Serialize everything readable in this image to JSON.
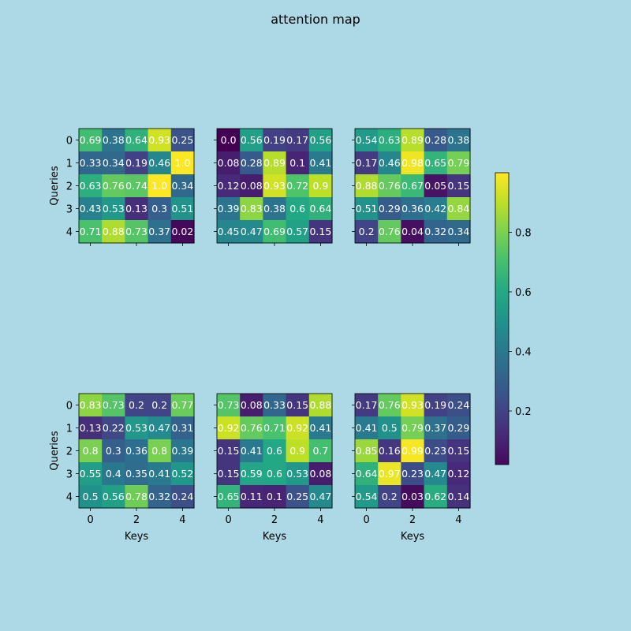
{
  "figure": {
    "background": "#add8e6",
    "title": "attention map"
  },
  "chart_data": {
    "type": "heatmap",
    "title": "attention map",
    "xlabel": "Keys",
    "ylabel": "Queries",
    "colormap": "viridis",
    "colorbar": {
      "range": [
        0.0,
        1.0
      ],
      "ticks": [
        "0.2",
        "0.4",
        "0.6",
        "0.8"
      ],
      "tick_values": [
        0.2,
        0.4,
        0.6,
        0.8
      ]
    },
    "x_ticks": [
      "0",
      "2",
      "4"
    ],
    "x_tick_values": [
      0,
      2,
      4
    ],
    "y_ticks": [
      "0",
      "1",
      "2",
      "3",
      "4"
    ],
    "layout": {
      "rows": 2,
      "cols": 3
    },
    "heads": [
      {
        "labels": [
          [
            "0.69",
            "0.38",
            "0.64",
            "0.93",
            "0.25"
          ],
          [
            "0.33",
            "0.34",
            "0.19",
            "0.46",
            "1.0"
          ],
          [
            "0.63",
            "0.76",
            "0.74",
            "1.0",
            "0.34"
          ],
          [
            "0.43",
            "0.53",
            "0.13",
            "0.3",
            "0.51"
          ],
          [
            "0.71",
            "0.88",
            "0.73",
            "0.37",
            "0.02"
          ]
        ]
      },
      {
        "labels": [
          [
            "0.0",
            "0.56",
            "0.19",
            "0.17",
            "0.56"
          ],
          [
            "0.08",
            "0.28",
            "0.89",
            "0.1",
            "0.41"
          ],
          [
            "0.12",
            "0.08",
            "0.93",
            "0.72",
            "0.9"
          ],
          [
            "0.39",
            "0.83",
            "0.38",
            "0.6",
            "0.64"
          ],
          [
            "0.45",
            "0.47",
            "0.69",
            "0.57",
            "0.15"
          ]
        ]
      },
      {
        "labels": [
          [
            "0.54",
            "0.63",
            "0.89",
            "0.28",
            "0.38"
          ],
          [
            "0.17",
            "0.46",
            "0.98",
            "0.65",
            "0.79"
          ],
          [
            "0.88",
            "0.76",
            "0.67",
            "0.05",
            "0.15"
          ],
          [
            "0.51",
            "0.29",
            "0.36",
            "0.42",
            "0.84"
          ],
          [
            "0.2",
            "0.76",
            "0.04",
            "0.32",
            "0.34"
          ]
        ]
      },
      {
        "labels": [
          [
            "0.83",
            "0.73",
            "0.2",
            "0.2",
            "0.77"
          ],
          [
            "0.13",
            "0.22",
            "0.53",
            "0.47",
            "0.31"
          ],
          [
            "0.8",
            "0.3",
            "0.36",
            "0.8",
            "0.39"
          ],
          [
            "0.55",
            "0.4",
            "0.35",
            "0.41",
            "0.52"
          ],
          [
            "0.5",
            "0.56",
            "0.78",
            "0.32",
            "0.24"
          ]
        ]
      },
      {
        "labels": [
          [
            "0.73",
            "0.08",
            "0.33",
            "0.15",
            "0.88"
          ],
          [
            "0.92",
            "0.76",
            "0.71",
            "0.92",
            "0.41"
          ],
          [
            "0.15",
            "0.41",
            "0.6",
            "0.9",
            "0.7"
          ],
          [
            "0.15",
            "0.59",
            "0.6",
            "0.53",
            "0.08"
          ],
          [
            "0.65",
            "0.11",
            "0.1",
            "0.25",
            "0.47"
          ]
        ]
      },
      {
        "labels": [
          [
            "0.17",
            "0.76",
            "0.93",
            "0.19",
            "0.24"
          ],
          [
            "0.41",
            "0.5",
            "0.79",
            "0.37",
            "0.29"
          ],
          [
            "0.85",
            "0.16",
            "0.99",
            "0.23",
            "0.15"
          ],
          [
            "0.64",
            "0.97",
            "0.23",
            "0.47",
            "0.12"
          ],
          [
            "0.54",
            "0.2",
            "0.03",
            "0.62",
            "0.14"
          ]
        ]
      }
    ]
  }
}
